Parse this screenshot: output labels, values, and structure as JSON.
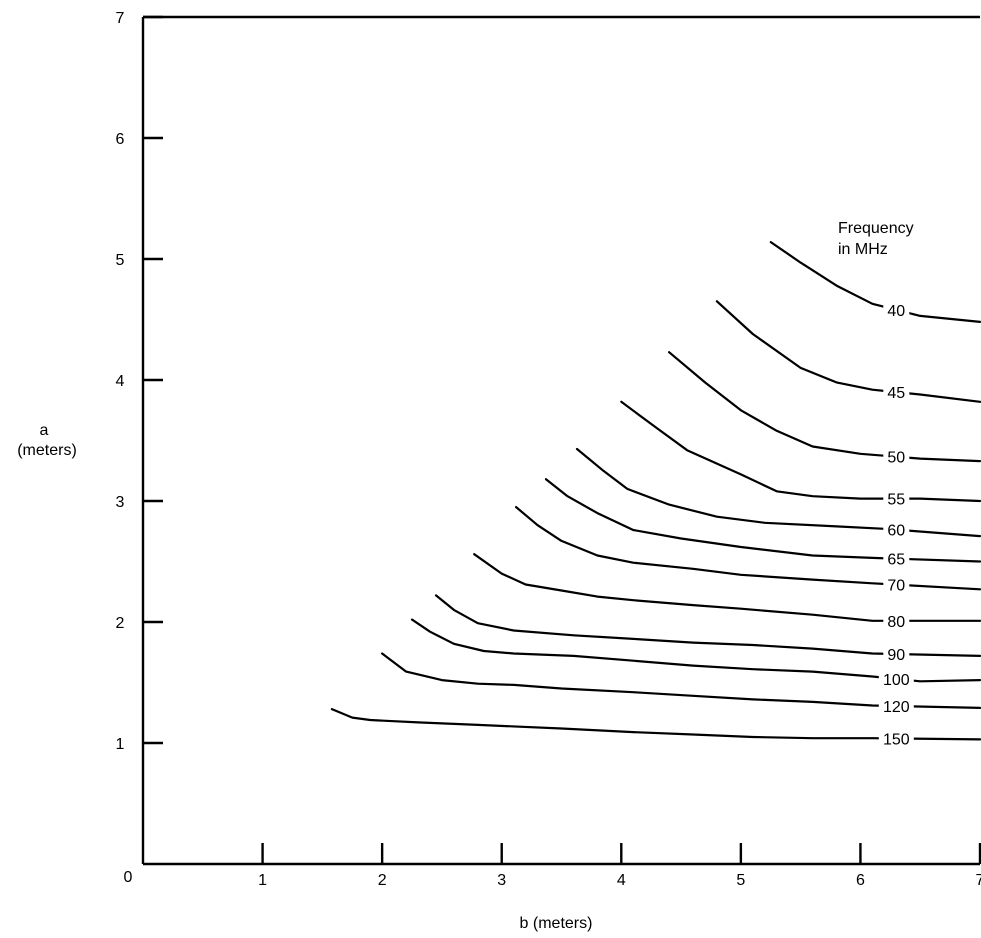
{
  "chart_data": {
    "type": "line",
    "title": "",
    "xlabel": "b (meters)",
    "ylabel_line1": "a",
    "ylabel_line2": "(meters)",
    "xlim": [
      0,
      7
    ],
    "ylim": [
      0,
      7
    ],
    "x_ticks": [
      1,
      2,
      3,
      4,
      5,
      6,
      7
    ],
    "y_ticks": [
      1,
      2,
      3,
      4,
      5,
      6,
      7
    ],
    "origin_label": "0",
    "grid": false,
    "legend_title_line1": "Frequency",
    "legend_title_line2": "in MHz",
    "series": [
      {
        "name": "40",
        "points": [
          [
            5.25,
            5.14
          ],
          [
            5.5,
            4.97
          ],
          [
            5.8,
            4.78
          ],
          [
            6.1,
            4.63
          ],
          [
            6.5,
            4.53
          ],
          [
            7.0,
            4.48
          ]
        ]
      },
      {
        "name": "45",
        "points": [
          [
            4.8,
            4.65
          ],
          [
            5.1,
            4.38
          ],
          [
            5.5,
            4.1
          ],
          [
            5.8,
            3.98
          ],
          [
            6.1,
            3.92
          ],
          [
            6.5,
            3.88
          ],
          [
            7.0,
            3.82
          ]
        ]
      },
      {
        "name": "50",
        "points": [
          [
            4.4,
            4.23
          ],
          [
            4.7,
            3.98
          ],
          [
            5.0,
            3.75
          ],
          [
            5.3,
            3.58
          ],
          [
            5.6,
            3.45
          ],
          [
            6.0,
            3.39
          ],
          [
            6.5,
            3.35
          ],
          [
            7.0,
            3.33
          ]
        ]
      },
      {
        "name": "55",
        "points": [
          [
            4.0,
            3.82
          ],
          [
            4.3,
            3.6
          ],
          [
            4.55,
            3.42
          ],
          [
            5.0,
            3.22
          ],
          [
            5.3,
            3.08
          ],
          [
            5.6,
            3.04
          ],
          [
            6.0,
            3.02
          ],
          [
            6.5,
            3.02
          ],
          [
            7.0,
            3.0
          ]
        ]
      },
      {
        "name": "60",
        "points": [
          [
            3.63,
            3.43
          ],
          [
            3.85,
            3.25
          ],
          [
            4.05,
            3.1
          ],
          [
            4.4,
            2.97
          ],
          [
            4.8,
            2.87
          ],
          [
            5.2,
            2.82
          ],
          [
            5.8,
            2.79
          ],
          [
            6.2,
            2.77
          ],
          [
            7.0,
            2.71
          ]
        ]
      },
      {
        "name": "65",
        "points": [
          [
            3.37,
            3.18
          ],
          [
            3.55,
            3.04
          ],
          [
            3.8,
            2.9
          ],
          [
            4.1,
            2.76
          ],
          [
            4.5,
            2.69
          ],
          [
            5.0,
            2.62
          ],
          [
            5.6,
            2.55
          ],
          [
            6.1,
            2.53
          ],
          [
            7.0,
            2.5
          ]
        ]
      },
      {
        "name": "70",
        "points": [
          [
            3.12,
            2.95
          ],
          [
            3.3,
            2.8
          ],
          [
            3.5,
            2.67
          ],
          [
            3.8,
            2.55
          ],
          [
            4.1,
            2.49
          ],
          [
            4.6,
            2.44
          ],
          [
            5.0,
            2.39
          ],
          [
            5.6,
            2.35
          ],
          [
            6.1,
            2.32
          ],
          [
            7.0,
            2.27
          ]
        ]
      },
      {
        "name": "80",
        "points": [
          [
            2.77,
            2.56
          ],
          [
            3.0,
            2.4
          ],
          [
            3.2,
            2.31
          ],
          [
            3.5,
            2.26
          ],
          [
            3.8,
            2.21
          ],
          [
            4.1,
            2.18
          ],
          [
            4.6,
            2.14
          ],
          [
            5.0,
            2.11
          ],
          [
            5.6,
            2.06
          ],
          [
            6.1,
            2.01
          ],
          [
            7.0,
            2.01
          ]
        ]
      },
      {
        "name": "90",
        "points": [
          [
            2.45,
            2.22
          ],
          [
            2.6,
            2.1
          ],
          [
            2.8,
            1.99
          ],
          [
            3.1,
            1.93
          ],
          [
            3.6,
            1.89
          ],
          [
            4.1,
            1.86
          ],
          [
            4.6,
            1.83
          ],
          [
            5.1,
            1.81
          ],
          [
            5.6,
            1.78
          ],
          [
            6.1,
            1.74
          ],
          [
            7.0,
            1.72
          ]
        ]
      },
      {
        "name": "100",
        "points": [
          [
            2.25,
            2.02
          ],
          [
            2.4,
            1.92
          ],
          [
            2.6,
            1.82
          ],
          [
            2.85,
            1.76
          ],
          [
            3.1,
            1.74
          ],
          [
            3.6,
            1.72
          ],
          [
            4.1,
            1.68
          ],
          [
            4.6,
            1.64
          ],
          [
            5.1,
            1.61
          ],
          [
            5.6,
            1.59
          ],
          [
            6.1,
            1.55
          ],
          [
            6.5,
            1.51
          ],
          [
            7.0,
            1.52
          ]
        ]
      },
      {
        "name": "120",
        "points": [
          [
            2.0,
            1.74
          ],
          [
            2.2,
            1.59
          ],
          [
            2.5,
            1.52
          ],
          [
            2.8,
            1.49
          ],
          [
            3.1,
            1.48
          ],
          [
            3.5,
            1.45
          ],
          [
            4.1,
            1.42
          ],
          [
            4.6,
            1.39
          ],
          [
            5.1,
            1.36
          ],
          [
            5.6,
            1.34
          ],
          [
            6.1,
            1.31
          ],
          [
            7.0,
            1.29
          ]
        ]
      },
      {
        "name": "150",
        "points": [
          [
            1.58,
            1.28
          ],
          [
            1.75,
            1.21
          ],
          [
            1.9,
            1.19
          ],
          [
            2.3,
            1.17
          ],
          [
            2.8,
            1.15
          ],
          [
            3.5,
            1.12
          ],
          [
            4.1,
            1.09
          ],
          [
            4.6,
            1.07
          ],
          [
            5.1,
            1.05
          ],
          [
            5.6,
            1.04
          ],
          [
            6.1,
            1.04
          ],
          [
            7.0,
            1.03
          ]
        ]
      }
    ]
  }
}
